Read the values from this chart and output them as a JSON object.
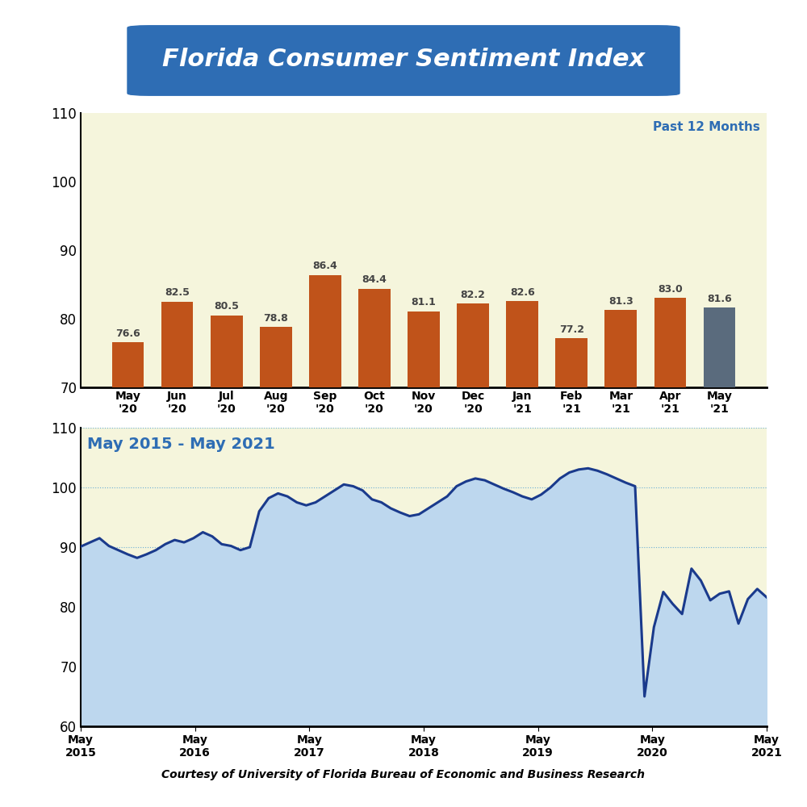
{
  "title": "Florida Consumer Sentiment Index",
  "title_bg_color": "#2E6DB4",
  "title_text_color": "#FFFFFF",
  "bar_labels": [
    "May\n'20",
    "Jun\n'20",
    "Jul\n'20",
    "Aug\n'20",
    "Sep\n'20",
    "Oct\n'20",
    "Nov\n'20",
    "Dec\n'20",
    "Jan\n'21",
    "Feb\n'21",
    "Mar\n'21",
    "Apr\n'21",
    "May\n'21"
  ],
  "bar_values": [
    76.6,
    82.5,
    80.5,
    78.8,
    86.4,
    84.4,
    81.1,
    82.2,
    82.6,
    77.2,
    81.3,
    83.0,
    81.6
  ],
  "bar_colors": [
    "#C0531A",
    "#C0531A",
    "#C0531A",
    "#C0531A",
    "#C0531A",
    "#C0531A",
    "#C0531A",
    "#C0531A",
    "#C0531A",
    "#C0531A",
    "#C0531A",
    "#C0531A",
    "#5A6B7D"
  ],
  "bar_ylim": [
    70,
    110
  ],
  "bar_yticks": [
    70,
    80,
    90,
    100,
    110
  ],
  "bar_bg_color": "#F5F5DC",
  "bar_annotation": "Past 12 Months",
  "bar_annotation_color": "#2E6DB4",
  "line_label": "May 2015 - May 2021",
  "line_label_color": "#2E6DB4",
  "line_color": "#1A3A8C",
  "line_fill_color": "#BDD7EE",
  "line_bg_color": "#F5F5DC",
  "line_ylim": [
    60,
    110
  ],
  "line_yticks": [
    60,
    70,
    80,
    90,
    100,
    110
  ],
  "line_xtick_labels": [
    "May\n2015",
    "May\n2016",
    "May\n2017",
    "May\n2018",
    "May\n2019",
    "May\n2020",
    "May\n2021"
  ],
  "line_gridline_values": [
    90,
    100,
    110
  ],
  "footer": "Courtesy of University of Florida Bureau of Economic and Business Research",
  "line_values": [
    90.1,
    90.8,
    91.5,
    90.2,
    89.5,
    88.8,
    88.2,
    88.8,
    89.5,
    90.5,
    91.2,
    90.8,
    91.5,
    92.5,
    91.8,
    90.5,
    90.2,
    89.5,
    90.0,
    96.0,
    98.2,
    99.0,
    98.5,
    97.5,
    97.0,
    97.5,
    98.5,
    99.5,
    100.5,
    100.2,
    99.5,
    98.0,
    97.5,
    96.5,
    95.8,
    95.2,
    95.5,
    96.5,
    97.5,
    98.5,
    100.2,
    101.0,
    101.5,
    101.2,
    100.5,
    99.8,
    99.2,
    98.5,
    98.0,
    98.8,
    100.0,
    101.5,
    102.5,
    103.0,
    103.2,
    102.8,
    102.2,
    101.5,
    100.8,
    100.2,
    65.0,
    76.6,
    82.5,
    80.5,
    78.8,
    86.4,
    84.4,
    81.1,
    82.2,
    82.6,
    77.2,
    81.3,
    83.0,
    81.6
  ]
}
